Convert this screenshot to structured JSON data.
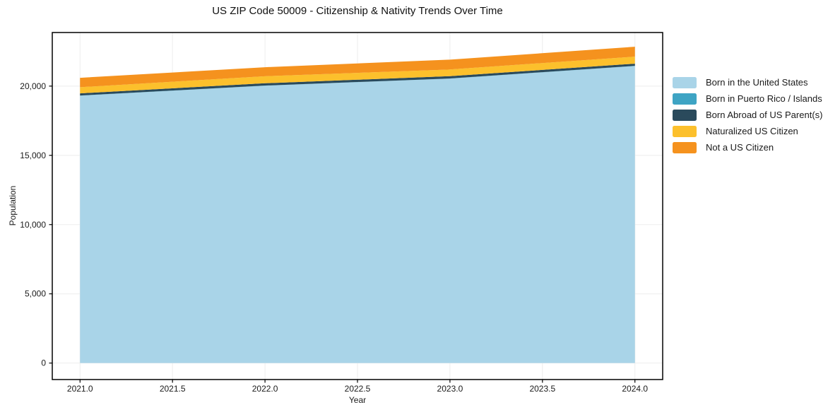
{
  "chart_data": {
    "type": "area",
    "stacked": true,
    "title": "US ZIP Code 50009 - Citizenship & Nativity Trends Over Time",
    "xlabel": "Year",
    "ylabel": "Population",
    "x": [
      2021,
      2022,
      2023,
      2024
    ],
    "series": [
      {
        "name": "Born in the United States",
        "color": "#A9D4E8",
        "values": [
          19310,
          20030,
          20540,
          21450
        ]
      },
      {
        "name": "Born in Puerto Rico / Islands",
        "color": "#3EA4C4",
        "values": [
          10,
          10,
          10,
          15
        ]
      },
      {
        "name": "Born Abroad of US Parent(s)",
        "color": "#2A4A5C",
        "values": [
          155,
          165,
          170,
          155
        ]
      },
      {
        "name": "Naturalized US Citizen",
        "color": "#FCC02C",
        "values": [
          445,
          510,
          480,
          510
        ]
      },
      {
        "name": "Not a US Citizen",
        "color": "#F5921E",
        "values": [
          680,
          650,
          710,
          715
        ]
      }
    ],
    "xlim": [
      2020.85,
      2024.15
    ],
    "ylim": [
      -1190,
      23870
    ],
    "xticks": {
      "values": [
        2021.0,
        2021.5,
        2022.0,
        2022.5,
        2023.0,
        2023.5,
        2024.0
      ],
      "labels": [
        "2021.0",
        "2021.5",
        "2022.0",
        "2022.5",
        "2023.0",
        "2023.5",
        "2024.0"
      ]
    },
    "yticks": {
      "values": [
        0,
        5000,
        10000,
        15000,
        20000
      ],
      "labels": [
        "0",
        "5,000",
        "10,000",
        "15,000",
        "20,000"
      ]
    },
    "grid": true,
    "legend_position": "right-of-plot"
  },
  "style": {
    "background": "#ffffff",
    "grid_color": "#ededed",
    "frame_color": "#000000",
    "text_color": "#1a1a1a"
  }
}
